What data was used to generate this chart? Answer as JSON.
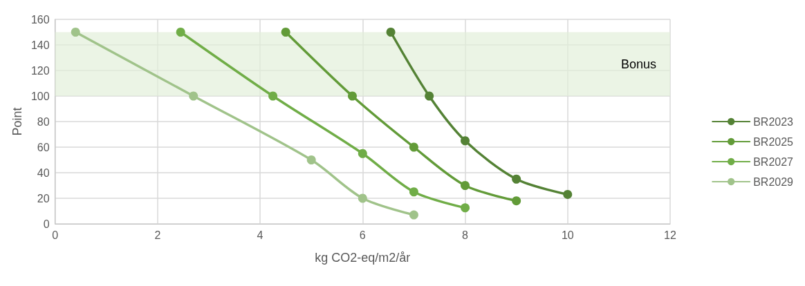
{
  "chart_data": {
    "type": "line",
    "xlabel": "kg CO2-eq/m2/år",
    "ylabel": "Point",
    "xlim": [
      0,
      12
    ],
    "xticks": [
      0,
      2,
      4,
      6,
      8,
      10,
      12
    ],
    "ylim": [
      0,
      160
    ],
    "yticks": [
      0,
      20,
      40,
      60,
      80,
      100,
      120,
      140,
      160
    ],
    "grid": true,
    "legend": "right",
    "marker": "circle",
    "line_style": "solid",
    "bands": [
      {
        "axis": "y",
        "from": 100,
        "to": 150,
        "label": "Bonus",
        "color": "#e2efda"
      }
    ],
    "series": [
      {
        "name": "BR2023",
        "color": "#548235",
        "x": [
          6.55,
          7.3,
          8,
          9,
          10
        ],
        "values": [
          150,
          100,
          65,
          35,
          23
        ]
      },
      {
        "name": "BR2025",
        "color": "#629b38",
        "x": [
          4.5,
          5.8,
          7,
          8,
          9
        ],
        "values": [
          150,
          100,
          60,
          30,
          18
        ]
      },
      {
        "name": "BR2027",
        "color": "#70ad47",
        "x": [
          2.45,
          4.25,
          6,
          7,
          8
        ],
        "values": [
          150,
          100,
          55,
          25,
          12.5
        ]
      },
      {
        "name": "BR2029",
        "color": "#a0c38a",
        "x": [
          0.4,
          2.7,
          5,
          6,
          7
        ],
        "values": [
          150,
          100,
          50,
          20,
          7
        ]
      }
    ]
  }
}
